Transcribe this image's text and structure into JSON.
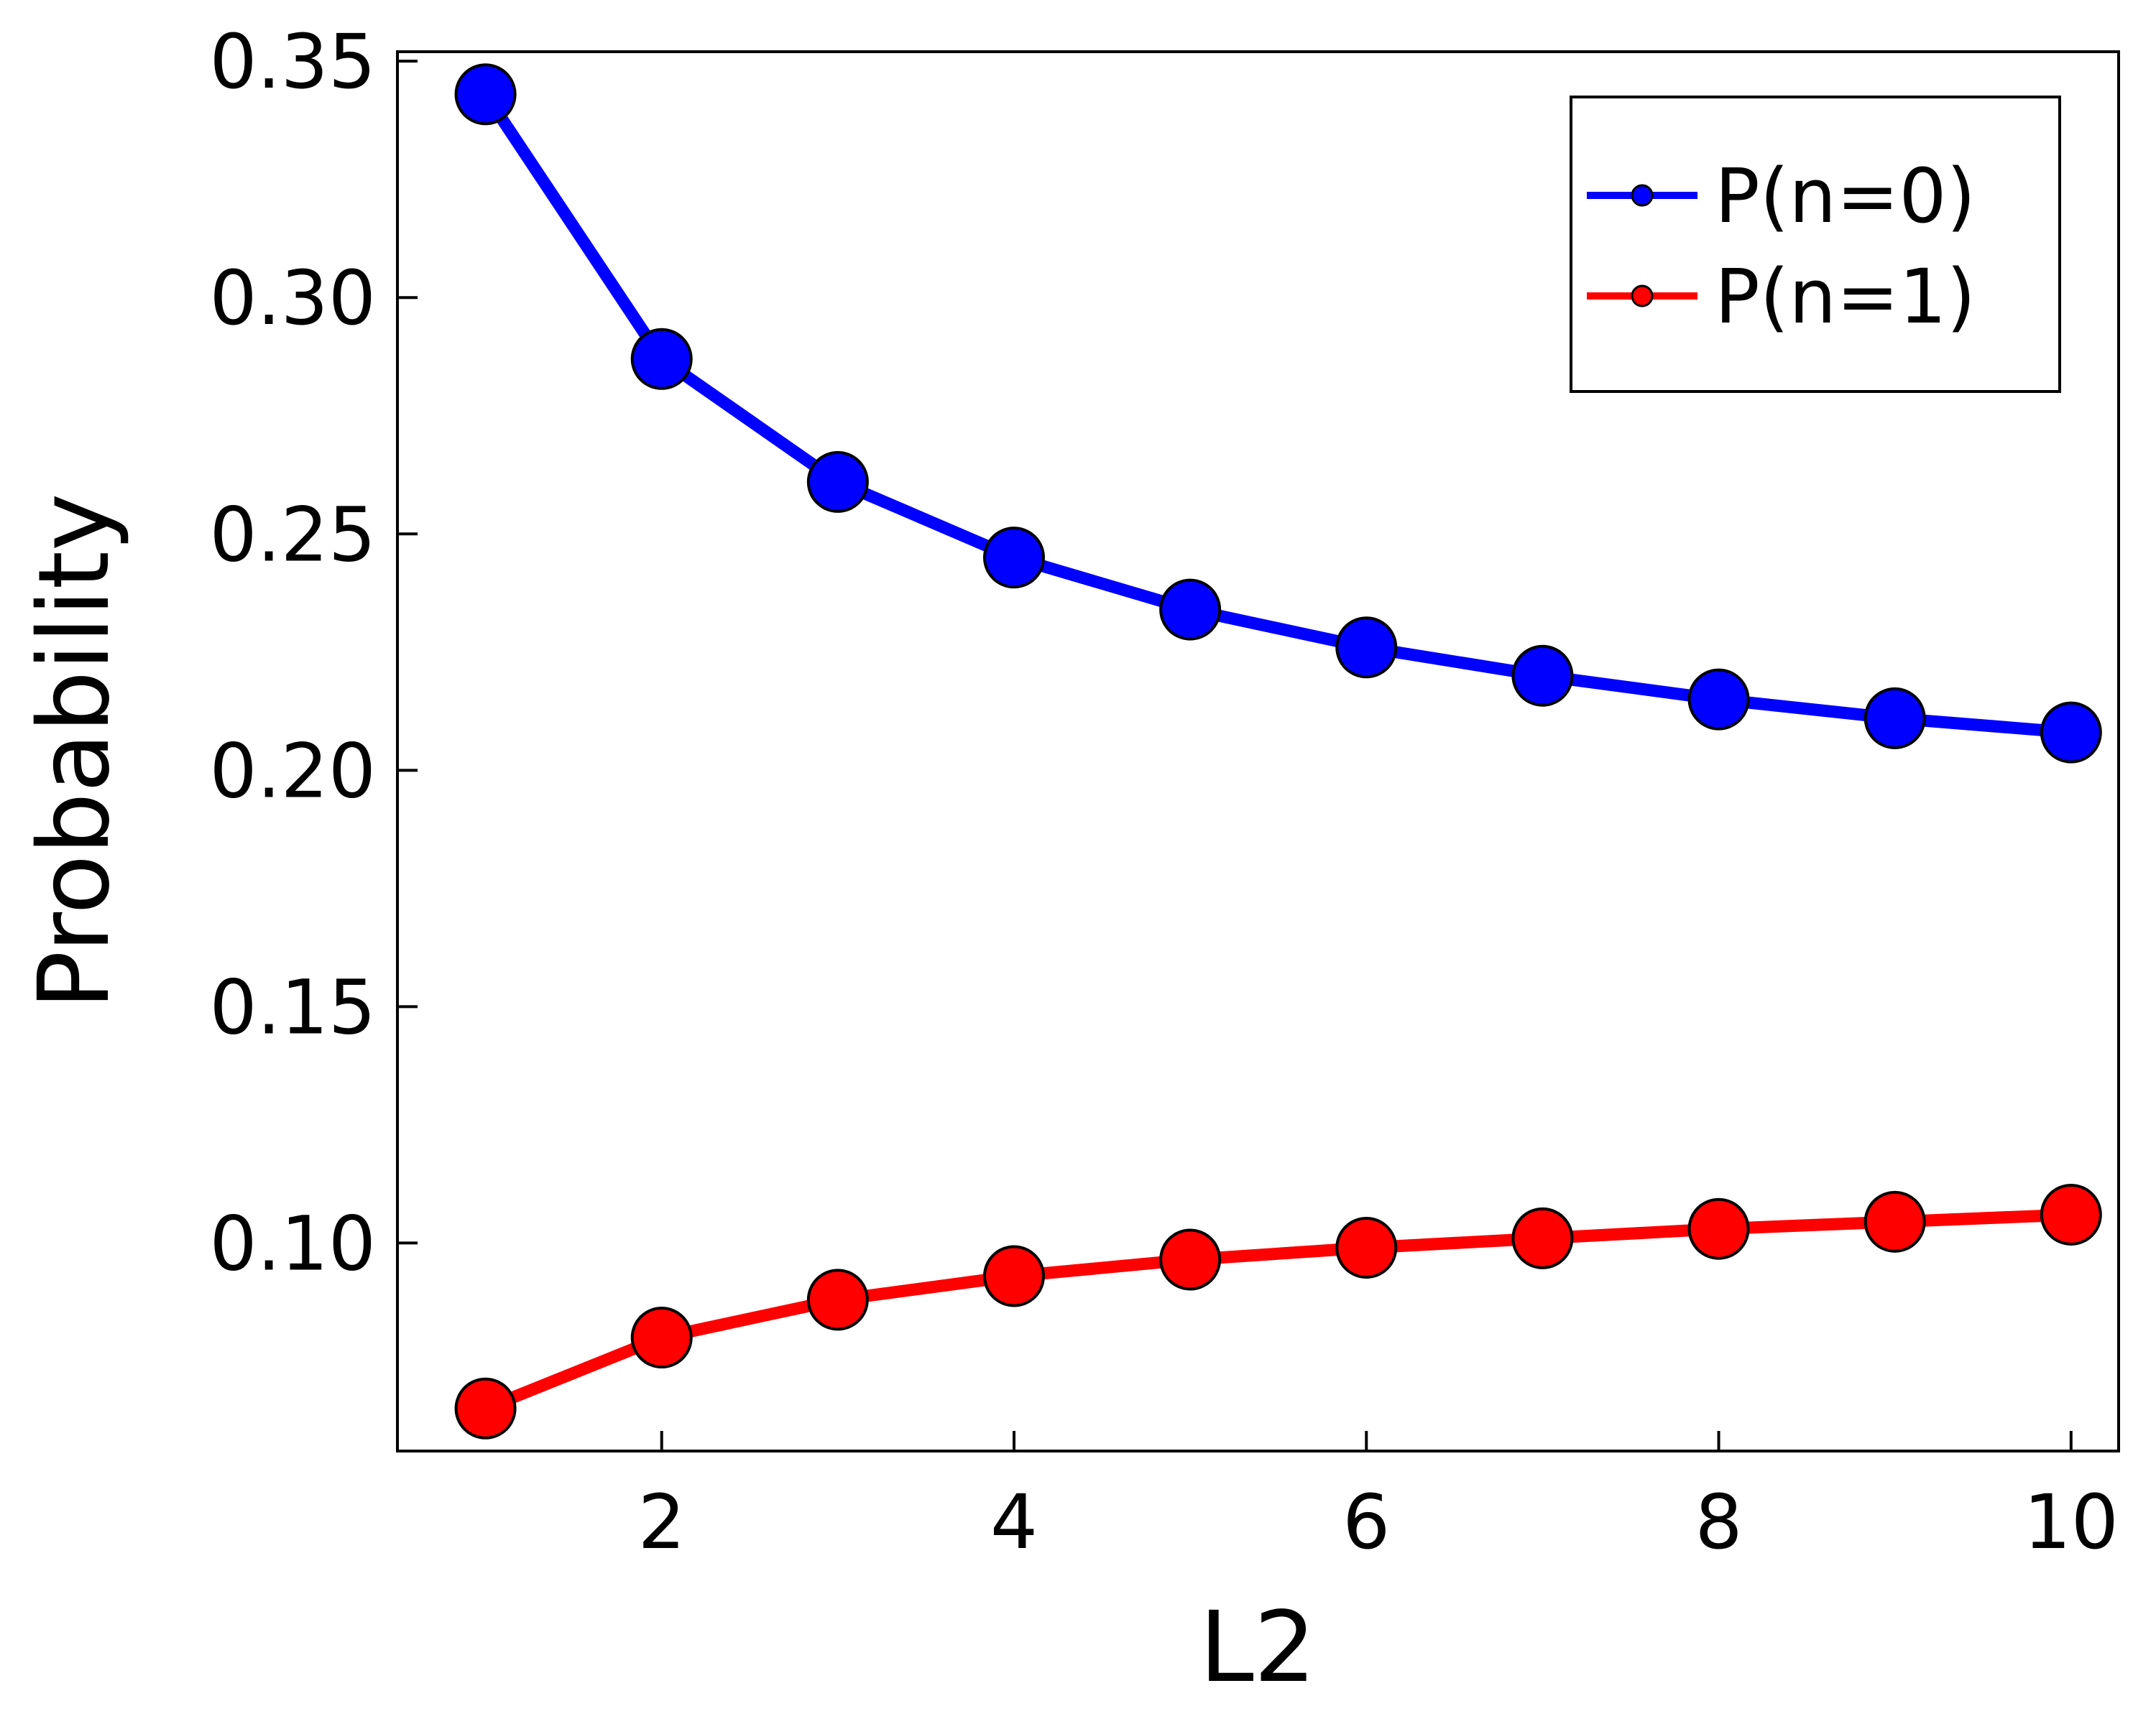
{
  "chart_data": {
    "type": "line",
    "title": "",
    "xlabel": "L2",
    "ylabel": "Probability",
    "x": [
      1,
      2,
      3,
      4,
      5,
      6,
      7,
      8,
      9,
      10
    ],
    "xlim": [
      0.5,
      10.27
    ],
    "ylim": [
      0.056,
      0.352
    ],
    "xticks": [
      2,
      4,
      6,
      8,
      10
    ],
    "xtick_labels": [
      "2",
      "4",
      "6",
      "8",
      "10"
    ],
    "yticks": [
      0.1,
      0.15,
      0.2,
      0.25,
      0.3,
      0.35
    ],
    "ytick_labels": [
      "0.10",
      "0.15",
      "0.20",
      "0.25",
      "0.30",
      "0.35"
    ],
    "grid": false,
    "legend_position": "top-right",
    "series": [
      {
        "name": "P(n=0)",
        "color": "#0000ff",
        "values": [
          0.343,
          0.287,
          0.261,
          0.245,
          0.234,
          0.226,
          0.22,
          0.215,
          0.211,
          0.208
        ]
      },
      {
        "name": "P(n=1)",
        "color": "#ff0000",
        "values": [
          0.065,
          0.08,
          0.088,
          0.093,
          0.0965,
          0.099,
          0.101,
          0.103,
          0.1045,
          0.106
        ]
      }
    ]
  }
}
